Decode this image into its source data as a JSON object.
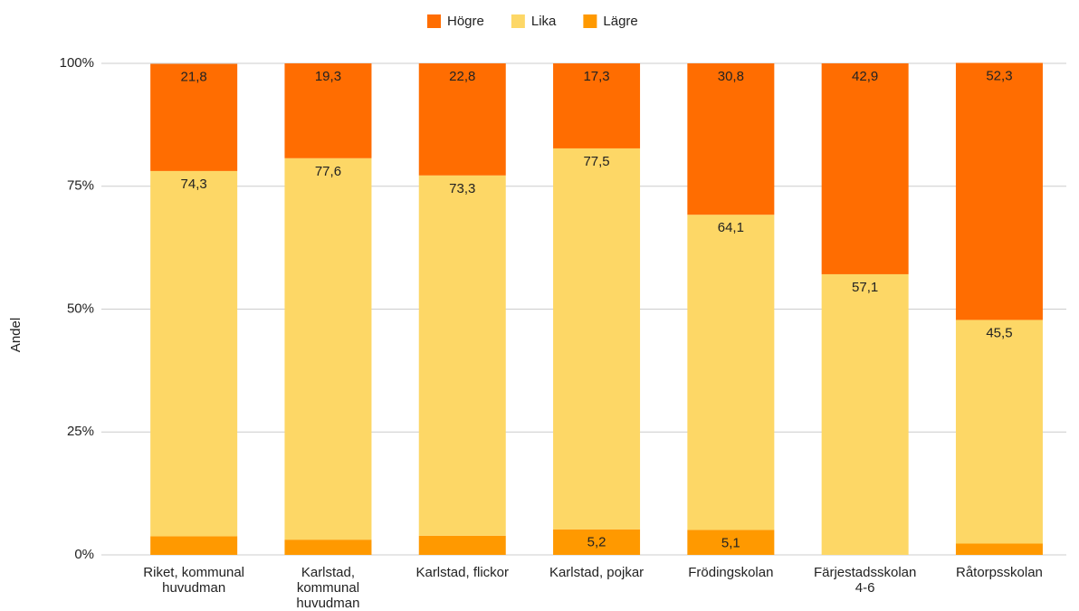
{
  "chart_data": {
    "type": "stacked_bar",
    "ylabel": "Andel",
    "categories": [
      "Riket, kommunal huvudman",
      "Karlstad, kommunal huvudman",
      "Karlstad, flickor",
      "Karlstad, pojkar",
      "Frödingskolan",
      "Färjestadsskolan 4-6",
      "Råtorpsskolan"
    ],
    "series": [
      {
        "name": "Lägre",
        "color": "#ff9900",
        "values": [
          3.8,
          3.1,
          3.9,
          5.2,
          5.1,
          0,
          2.3
        ],
        "value_labels": [
          "3,8",
          "3,1",
          "3,9",
          "5,2",
          "5,1",
          "0",
          "2,3"
        ]
      },
      {
        "name": "Lika",
        "color": "#fdd766",
        "values": [
          74.3,
          77.6,
          73.3,
          77.5,
          64.1,
          57.1,
          45.5
        ],
        "value_labels": [
          "74,3",
          "77,6",
          "73,3",
          "77,5",
          "64,1",
          "57,1",
          "45,5"
        ]
      },
      {
        "name": "Högre",
        "color": "#ff6d01",
        "values": [
          21.8,
          19.3,
          22.8,
          17.3,
          30.8,
          42.9,
          52.3
        ],
        "value_labels": [
          "21,8",
          "19,3",
          "22,8",
          "17,3",
          "30,8",
          "42,9",
          "52,3"
        ]
      }
    ],
    "legend_order": [
      "Högre",
      "Lika",
      "Lägre"
    ],
    "ylim": [
      0,
      100
    ],
    "yticks": [
      {
        "value": 0,
        "label": "0%"
      },
      {
        "value": 25,
        "label": "25%"
      },
      {
        "value": 50,
        "label": "50%"
      },
      {
        "value": 75,
        "label": "75%"
      },
      {
        "value": 100,
        "label": "100%"
      }
    ],
    "grid": true,
    "legend": "top"
  }
}
